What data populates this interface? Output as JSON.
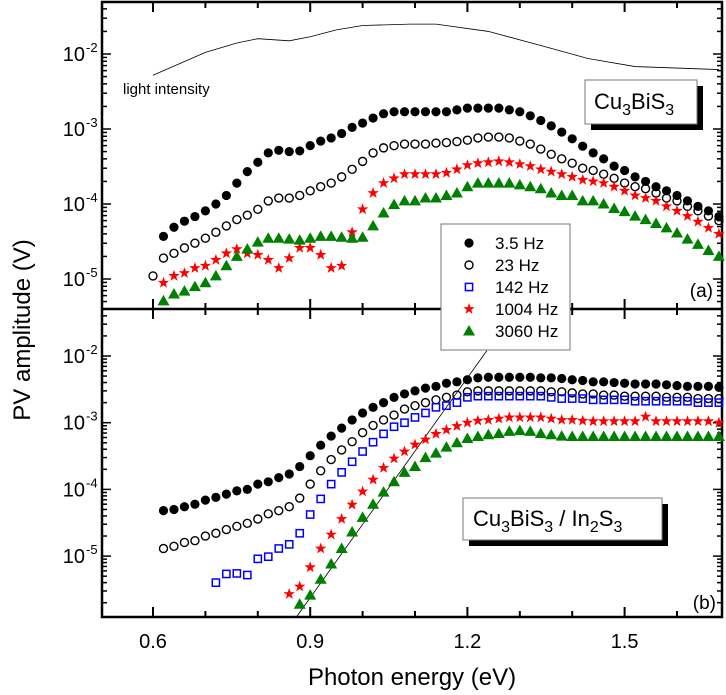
{
  "chart_data": [
    {
      "type": "scatter",
      "panel_label": "(a)",
      "sample_label": "Cu3BiS3",
      "x_axis": {
        "label": "Photon energy (eV)",
        "lim": [
          0.503,
          1.686
        ],
        "ticks": [
          0.6,
          0.9,
          1.2,
          1.5
        ],
        "tick_labels": [
          "0.6",
          "0.9",
          "1.2",
          "1.5"
        ]
      },
      "y_axis": {
        "label": "PV amplitude (V)",
        "scale": "log",
        "lim": [
          4e-06,
          0.049
        ],
        "ticks": [
          1e-05,
          0.0001,
          0.001,
          0.01
        ],
        "tick_labels": [
          "10^-5",
          "10^-4",
          "10^-3",
          "10^-2"
        ]
      },
      "grid": false,
      "x": [
        0.6,
        0.62,
        0.64,
        0.66,
        0.68,
        0.7,
        0.72,
        0.74,
        0.76,
        0.78,
        0.8,
        0.82,
        0.84,
        0.86,
        0.88,
        0.9,
        0.92,
        0.94,
        0.96,
        0.98,
        1.0,
        1.02,
        1.04,
        1.06,
        1.08,
        1.1,
        1.12,
        1.14,
        1.16,
        1.18,
        1.2,
        1.22,
        1.24,
        1.26,
        1.28,
        1.3,
        1.32,
        1.34,
        1.36,
        1.38,
        1.4,
        1.42,
        1.44,
        1.46,
        1.48,
        1.5,
        1.52,
        1.54,
        1.56,
        1.58,
        1.6,
        1.62,
        1.64,
        1.66,
        1.68
      ],
      "series": [
        {
          "name": "3.5 Hz",
          "marker": "filled-circle",
          "color": "#000000",
          "values": [
            null,
            3.7e-05,
            4.9e-05,
            5.9e-05,
            6.8e-05,
            8.1e-05,
            0.0001,
            0.00013,
            0.00019,
            0.00027,
            0.00036,
            0.00048,
            0.00052,
            0.0005,
            0.00051,
            0.0006,
            0.00069,
            0.00076,
            0.00087,
            0.00105,
            0.0012,
            0.0014,
            0.0016,
            0.0017,
            0.0017,
            0.0017,
            0.0017,
            0.0017,
            0.0017,
            0.0018,
            0.0019,
            0.0019,
            0.0019,
            0.0019,
            0.0018,
            0.0017,
            0.0015,
            0.0013,
            0.0011,
            0.00091,
            0.00074,
            0.00059,
            0.00048,
            0.0004,
            0.00032,
            0.00028,
            0.00023,
            0.0002,
            0.00017,
            0.00015,
            0.00013,
            0.00011,
            9.3e-05,
            8.1e-05,
            6.8e-05
          ]
        },
        {
          "name": "23 Hz",
          "marker": "open-circle",
          "color": "#000000",
          "values": [
            1.1e-05,
            1.9e-05,
            2.2e-05,
            2.6e-05,
            3e-05,
            3.5e-05,
            4.2e-05,
            5.1e-05,
            6.2e-05,
            7.1e-05,
            8.5e-05,
            0.00011,
            0.00012,
            0.00012,
            0.00013,
            0.00015,
            0.00017,
            0.00019,
            0.00023,
            0.00029,
            0.00037,
            0.00048,
            0.00056,
            0.0006,
            0.00063,
            0.00063,
            0.00063,
            0.00065,
            0.00066,
            0.00068,
            0.00071,
            0.00076,
            0.00078,
            0.00078,
            0.00076,
            0.00069,
            0.00063,
            0.00054,
            0.00046,
            0.0004,
            0.00035,
            0.0003,
            0.00028,
            0.00025,
            0.00022,
            0.00019,
            0.00017,
            0.00016,
            0.00014,
            0.00012,
            0.00011,
            9.3e-05,
            8.1e-05,
            6.9e-05,
            6e-05
          ]
        },
        {
          "name": "1004 Hz",
          "marker": "star",
          "color": "#ff0000",
          "values": [
            null,
            8.9e-06,
            1.1e-05,
            1.2e-05,
            1.4e-05,
            1.5e-05,
            1.8e-05,
            2.2e-05,
            2.5e-05,
            2.2e-05,
            2.1e-05,
            1.8e-05,
            1.4e-05,
            1.9e-05,
            2.6e-05,
            2.6e-05,
            2.1e-05,
            1.4e-05,
            1.5e-05,
            4.2e-05,
            8.5e-05,
            0.00014,
            0.00019,
            0.00022,
            0.00025,
            0.00025,
            0.00025,
            0.00025,
            0.00026,
            0.00029,
            0.00033,
            0.00035,
            0.00036,
            0.00037,
            0.00036,
            0.00034,
            0.00032,
            0.00029,
            0.00027,
            0.00025,
            0.00023,
            0.00021,
            0.0002,
            0.00019,
            0.00017,
            0.00015,
            0.00013,
            0.00012,
            0.00011,
            9.3e-05,
            8.1e-05,
            6.9e-05,
            5.8e-05,
            4.8e-05,
            4e-05
          ]
        },
        {
          "name": "3060 Hz",
          "marker": "triangle",
          "color": "#008000",
          "values": [
            null,
            5.1e-06,
            6.3e-06,
            6.9e-06,
            7.9e-06,
            8.9e-06,
            1.1e-05,
            1.5e-05,
            2e-05,
            2.5e-05,
            3.1e-05,
            3.5e-05,
            3.5e-05,
            3.4e-05,
            3.3e-05,
            3.5e-05,
            3.7e-05,
            3.7e-05,
            3.6e-05,
            3.5e-05,
            3.6e-05,
            5.1e-05,
            7.6e-05,
            9.8e-05,
            0.00011,
            0.00011,
            0.00012,
            0.00012,
            0.00013,
            0.00014,
            0.00017,
            0.00019,
            0.00019,
            0.00019,
            0.00019,
            0.00018,
            0.00017,
            0.00016,
            0.00014,
            0.00013,
            0.00013,
            0.00011,
            0.00011,
            0.0001,
            8.7e-05,
            7.9e-05,
            6.9e-05,
            6.2e-05,
            5.5e-05,
            4.8e-05,
            4.1e-05,
            3.4e-05,
            2.9e-05,
            2.4e-05,
            2e-05
          ]
        }
      ],
      "light_intensity": {
        "label": "light intensity",
        "x": [
          0.6,
          0.7,
          0.76,
          0.8,
          0.86,
          0.9,
          0.95,
          1.0,
          1.09,
          1.14,
          1.24,
          1.34,
          1.43,
          1.52,
          1.68
        ],
        "values": [
          0.0052,
          0.0105,
          0.014,
          0.016,
          0.015,
          0.017,
          0.021,
          0.024,
          0.025,
          0.025,
          0.02,
          0.013,
          0.0087,
          0.0068,
          0.0062
        ]
      }
    },
    {
      "type": "scatter",
      "panel_label": "(b)",
      "sample_label": "Cu3BiS3 / In2S3",
      "x_axis": {
        "label": "Photon energy (eV)",
        "lim": [
          0.503,
          1.686
        ],
        "ticks": [
          0.6,
          0.9,
          1.2,
          1.5
        ],
        "tick_labels": [
          "0.6",
          "0.9",
          "1.2",
          "1.5"
        ]
      },
      "y_axis": {
        "label": "PV amplitude (V)",
        "scale": "log",
        "lim": [
          1.2e-06,
          0.051
        ],
        "ticks": [
          1e-05,
          0.0001,
          0.001,
          0.01
        ],
        "tick_labels": [
          "10^-5",
          "10^-4",
          "10^-3",
          "10^-2"
        ]
      },
      "grid": false,
      "x": [
        0.6,
        0.62,
        0.64,
        0.66,
        0.68,
        0.7,
        0.72,
        0.74,
        0.76,
        0.78,
        0.8,
        0.82,
        0.84,
        0.86,
        0.88,
        0.9,
        0.92,
        0.94,
        0.96,
        0.98,
        1.0,
        1.02,
        1.04,
        1.06,
        1.08,
        1.1,
        1.12,
        1.14,
        1.16,
        1.18,
        1.2,
        1.22,
        1.24,
        1.26,
        1.28,
        1.3,
        1.32,
        1.34,
        1.36,
        1.38,
        1.4,
        1.42,
        1.44,
        1.46,
        1.48,
        1.5,
        1.52,
        1.54,
        1.56,
        1.58,
        1.6,
        1.62,
        1.64,
        1.66,
        1.68
      ],
      "series": [
        {
          "name": "3.5 Hz",
          "marker": "filled-circle",
          "color": "#000000",
          "values": [
            null,
            4.8e-05,
            5e-05,
            5.5e-05,
            6e-05,
            6.9e-05,
            7.6e-05,
            8.5e-05,
            9.5e-05,
            0.0001,
            0.00012,
            0.00013,
            0.00015,
            0.00017,
            0.00022,
            0.00032,
            0.00046,
            0.00063,
            0.00083,
            0.0011,
            0.0014,
            0.0017,
            0.002,
            0.0024,
            0.0027,
            0.003,
            0.0033,
            0.0035,
            0.0039,
            0.0041,
            0.0044,
            0.0047,
            0.0048,
            0.0048,
            0.0048,
            0.0048,
            0.0048,
            0.0047,
            0.0047,
            0.0046,
            0.0044,
            0.0043,
            0.0041,
            0.0041,
            0.004,
            0.0039,
            0.0038,
            0.0038,
            0.0038,
            0.0037,
            0.0036,
            0.0035,
            0.0035,
            0.0035,
            0.0034
          ]
        },
        {
          "name": "23 Hz",
          "marker": "open-circle",
          "color": "#000000",
          "values": [
            null,
            1.3e-05,
            1.4e-05,
            1.6e-05,
            1.7e-05,
            2e-05,
            2.2e-05,
            2.5e-05,
            2.8e-05,
            3.1e-05,
            3.6e-05,
            4.3e-05,
            4.8e-05,
            5.5e-05,
            7.4e-05,
            0.00012,
            0.00019,
            0.00028,
            0.00039,
            0.00052,
            0.00071,
            0.00091,
            0.0011,
            0.0013,
            0.0016,
            0.0018,
            0.002,
            0.0022,
            0.0024,
            0.0026,
            0.0029,
            0.003,
            0.003,
            0.003,
            0.003,
            0.003,
            0.003,
            0.003,
            0.0029,
            0.0029,
            0.0028,
            0.0027,
            0.0027,
            0.0026,
            0.0026,
            0.0025,
            0.0025,
            0.0025,
            0.0025,
            0.0024,
            0.0024,
            0.0024,
            0.0023,
            0.0023,
            0.0023
          ]
        },
        {
          "name": "142 Hz",
          "marker": "open-square",
          "color": "#0000ff",
          "values": [
            null,
            null,
            null,
            null,
            null,
            null,
            4e-06,
            5.4e-06,
            5.5e-06,
            5.2e-06,
            9.1e-06,
            9.8e-06,
            1.3e-05,
            1.5e-05,
            2.2e-05,
            4.2e-05,
            7.2e-05,
            0.00012,
            0.00018,
            0.00026,
            0.00037,
            0.00051,
            0.00068,
            0.00087,
            0.001,
            0.0012,
            0.0014,
            0.0017,
            0.0018,
            0.002,
            0.0024,
            0.0025,
            0.0025,
            0.0025,
            0.0025,
            0.0025,
            0.0025,
            0.0025,
            0.0024,
            0.0023,
            0.0023,
            0.0023,
            0.0022,
            0.0022,
            0.0022,
            0.0022,
            0.0021,
            0.0021,
            0.0021,
            0.0021,
            0.0021,
            0.0021,
            0.002,
            0.002,
            0.002
          ]
        },
        {
          "name": "1004 Hz",
          "marker": "star",
          "color": "#ff0000",
          "values": [
            null,
            null,
            null,
            null,
            null,
            null,
            null,
            null,
            null,
            null,
            null,
            null,
            null,
            2.7e-06,
            3.5e-06,
            6.8e-06,
            1.3e-05,
            2.1e-05,
            3.6e-05,
            5.9e-05,
            9.3e-05,
            0.00014,
            0.00021,
            0.00029,
            0.00037,
            0.00047,
            0.00056,
            0.00068,
            0.00078,
            0.00089,
            0.001,
            0.00107,
            0.0011,
            0.00115,
            0.0012,
            0.0012,
            0.0012,
            0.0012,
            0.00115,
            0.0011,
            0.0011,
            0.00107,
            0.00105,
            0.00105,
            0.00105,
            0.00105,
            0.00105,
            0.00123,
            0.00105,
            0.00105,
            0.00105,
            0.00105,
            0.00105,
            0.00105,
            0.001
          ]
        },
        {
          "name": "3060 Hz",
          "marker": "triangle",
          "color": "#008000",
          "values": [
            null,
            null,
            null,
            null,
            null,
            null,
            null,
            null,
            null,
            null,
            null,
            null,
            null,
            null,
            1.9e-06,
            2.6e-06,
            4.5e-06,
            7.6e-06,
            1.3e-05,
            2.3e-05,
            3.8e-05,
            6e-05,
            9.1e-05,
            0.00013,
            0.00018,
            0.00022,
            0.0003,
            0.00035,
            0.00043,
            0.0005,
            0.00058,
            0.00062,
            0.00066,
            0.00069,
            0.00074,
            0.00076,
            0.00074,
            0.00069,
            0.00066,
            0.00063,
            0.00062,
            0.00062,
            0.00062,
            0.00062,
            0.00062,
            0.00062,
            0.00062,
            0.00062,
            0.00062,
            0.00062,
            0.00062,
            0.00062,
            0.00062,
            0.00062,
            0.00062
          ]
        }
      ],
      "fit_line": {
        "x": [
          0.873,
          1.237
        ],
        "values": [
          1.2e-06,
          0.012
        ]
      }
    }
  ],
  "legend": {
    "placement": "center-right, straddling both panels",
    "entries": [
      {
        "label": "3.5 Hz",
        "marker": "filled-circle",
        "color": "#000000"
      },
      {
        "label": "23 Hz",
        "marker": "open-circle",
        "color": "#000000"
      },
      {
        "label": "142 Hz",
        "marker": "open-square",
        "color": "#0000ff"
      },
      {
        "label": "1004 Hz",
        "marker": "star",
        "color": "#ff0000"
      },
      {
        "label": "3060 Hz",
        "marker": "triangle",
        "color": "#008000"
      }
    ]
  }
}
